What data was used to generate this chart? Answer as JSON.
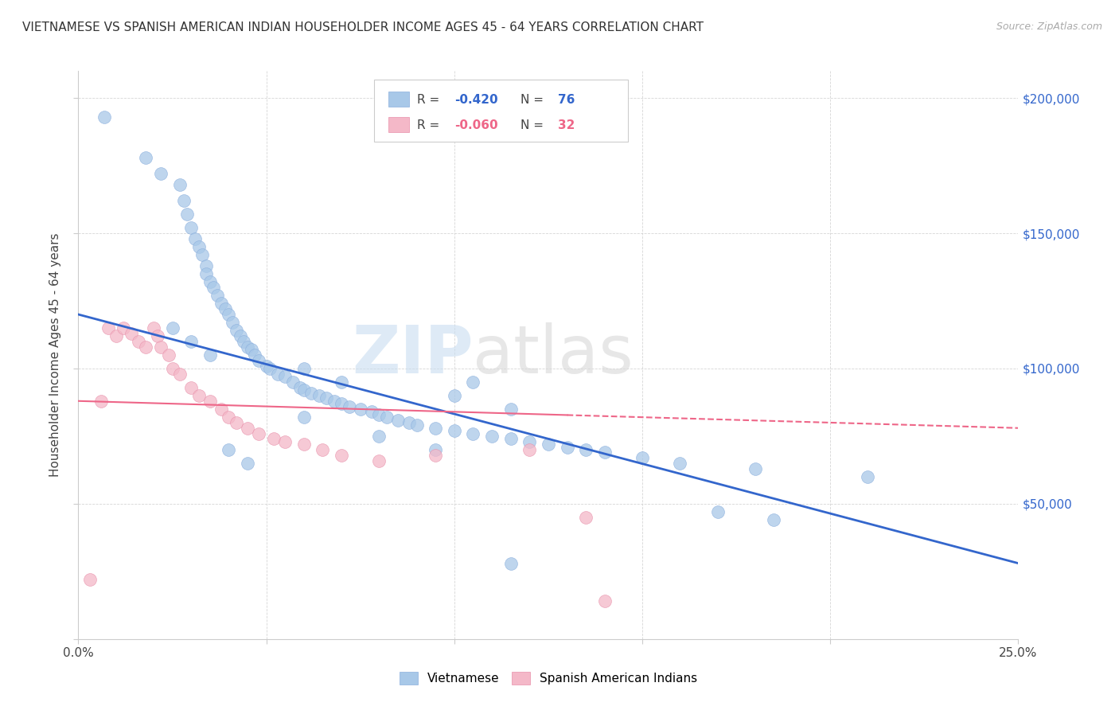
{
  "title": "VIETNAMESE VS SPANISH AMERICAN INDIAN HOUSEHOLDER INCOME AGES 45 - 64 YEARS CORRELATION CHART",
  "source": "Source: ZipAtlas.com",
  "ylabel": "Householder Income Ages 45 - 64 years",
  "xlim": [
    0.0,
    0.25
  ],
  "ylim": [
    0,
    210000
  ],
  "yticks": [
    0,
    50000,
    100000,
    150000,
    200000
  ],
  "ytick_labels": [
    "",
    "$50,000",
    "$100,000",
    "$150,000",
    "$200,000"
  ],
  "xticks": [
    0.0,
    0.05,
    0.1,
    0.15,
    0.2,
    0.25
  ],
  "xtick_labels": [
    "0.0%",
    "",
    "",
    "",
    "",
    "25.0%"
  ],
  "background_color": "#ffffff",
  "grid_color": "#cccccc",
  "watermark_zip": "ZIP",
  "watermark_atlas": "atlas",
  "blue_color": "#a8c8e8",
  "pink_color": "#f4b8c8",
  "blue_line_color": "#3366cc",
  "pink_line_color": "#ee6688",
  "blue_R": "-0.420",
  "blue_N": "76",
  "pink_R": "-0.060",
  "pink_N": "32",
  "viet_x": [
    0.007,
    0.018,
    0.022,
    0.027,
    0.028,
    0.029,
    0.03,
    0.031,
    0.032,
    0.033,
    0.034,
    0.034,
    0.035,
    0.036,
    0.037,
    0.038,
    0.039,
    0.04,
    0.041,
    0.042,
    0.043,
    0.044,
    0.045,
    0.046,
    0.047,
    0.048,
    0.05,
    0.051,
    0.053,
    0.055,
    0.057,
    0.059,
    0.06,
    0.062,
    0.064,
    0.066,
    0.068,
    0.07,
    0.072,
    0.075,
    0.078,
    0.08,
    0.082,
    0.085,
    0.088,
    0.09,
    0.095,
    0.1,
    0.105,
    0.11,
    0.115,
    0.12,
    0.125,
    0.13,
    0.135,
    0.14,
    0.15,
    0.16,
    0.18,
    0.21,
    0.025,
    0.03,
    0.035,
    0.06,
    0.07,
    0.1,
    0.105,
    0.115,
    0.17,
    0.185,
    0.04,
    0.045,
    0.06,
    0.08,
    0.095,
    0.115
  ],
  "viet_y": [
    193000,
    178000,
    172000,
    168000,
    162000,
    157000,
    152000,
    148000,
    145000,
    142000,
    138000,
    135000,
    132000,
    130000,
    127000,
    124000,
    122000,
    120000,
    117000,
    114000,
    112000,
    110000,
    108000,
    107000,
    105000,
    103000,
    101000,
    100000,
    98000,
    97000,
    95000,
    93000,
    92000,
    91000,
    90000,
    89000,
    88000,
    87000,
    86000,
    85000,
    84000,
    83000,
    82000,
    81000,
    80000,
    79000,
    78000,
    77000,
    76000,
    75000,
    74000,
    73000,
    72000,
    71000,
    70000,
    69000,
    67000,
    65000,
    63000,
    60000,
    115000,
    110000,
    105000,
    100000,
    95000,
    90000,
    95000,
    85000,
    47000,
    44000,
    70000,
    65000,
    82000,
    75000,
    70000,
    28000
  ],
  "span_x": [
    0.003,
    0.006,
    0.008,
    0.01,
    0.012,
    0.014,
    0.016,
    0.018,
    0.02,
    0.021,
    0.022,
    0.024,
    0.025,
    0.027,
    0.03,
    0.032,
    0.035,
    0.038,
    0.04,
    0.042,
    0.045,
    0.048,
    0.052,
    0.055,
    0.06,
    0.065,
    0.07,
    0.08,
    0.095,
    0.12,
    0.135,
    0.14
  ],
  "span_y": [
    22000,
    88000,
    115000,
    112000,
    115000,
    113000,
    110000,
    108000,
    115000,
    112000,
    108000,
    105000,
    100000,
    98000,
    93000,
    90000,
    88000,
    85000,
    82000,
    80000,
    78000,
    76000,
    74000,
    73000,
    72000,
    70000,
    68000,
    66000,
    68000,
    70000,
    45000,
    14000
  ],
  "blue_line_x0": 0.0,
  "blue_line_y0": 120000,
  "blue_line_x1": 0.25,
  "blue_line_y1": 28000,
  "pink_line_x0": 0.0,
  "pink_line_y0": 88000,
  "pink_line_x1": 0.25,
  "pink_line_y1": 78000
}
